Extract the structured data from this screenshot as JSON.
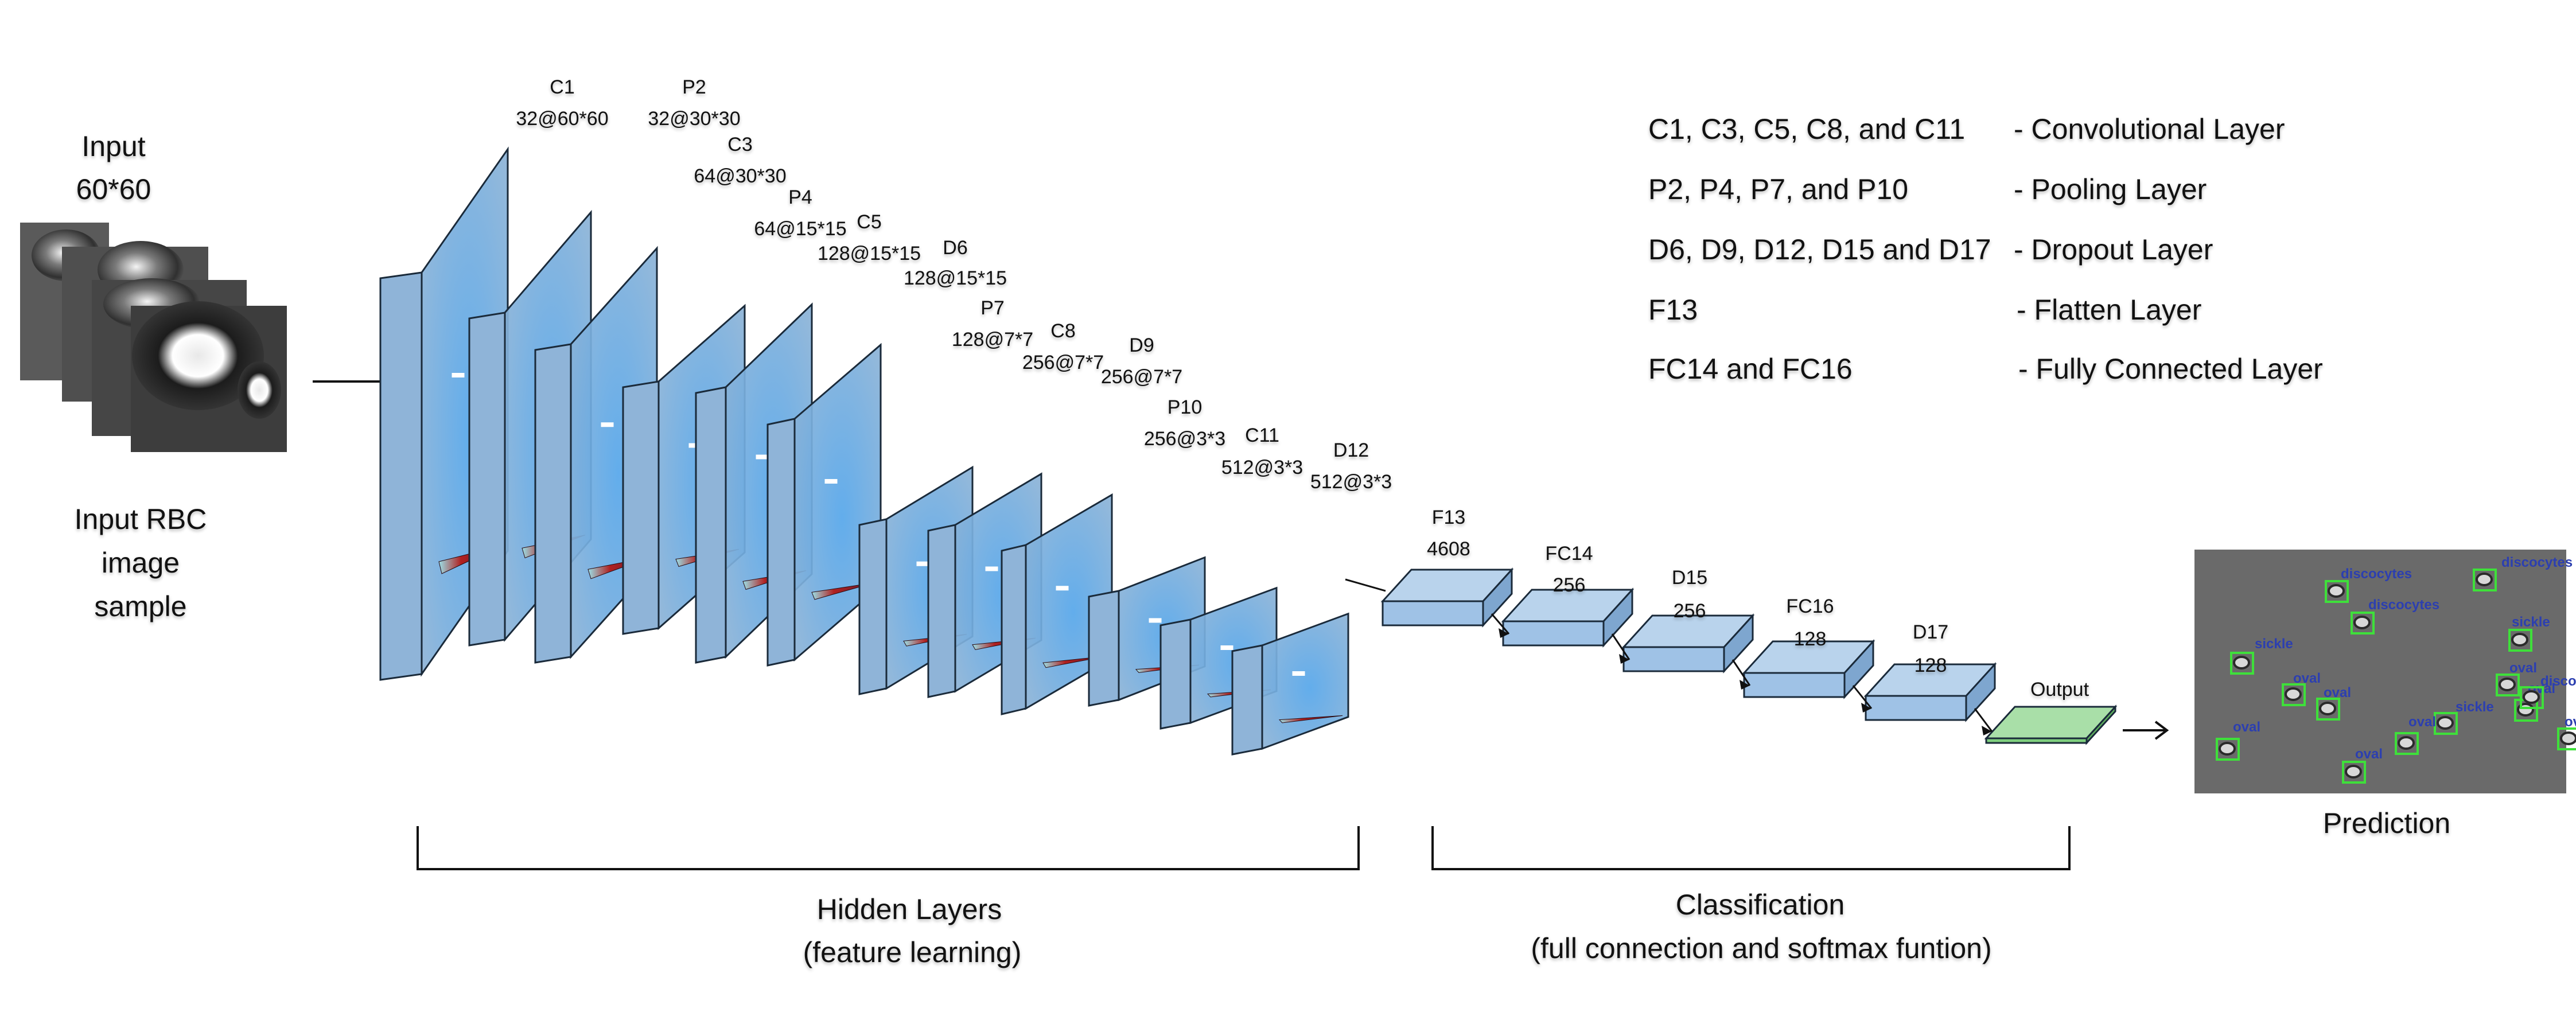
{
  "input": {
    "title_line1": "Input",
    "title_line2": "60*60",
    "caption_line1": "Input RBC",
    "caption_line2": "image",
    "caption_line3": "sample"
  },
  "layers": [
    {
      "id": "C1",
      "name": "C1",
      "dims": "32@60*60"
    },
    {
      "id": "P2",
      "name": "P2",
      "dims": "32@30*30"
    },
    {
      "id": "C3",
      "name": "C3",
      "dims": "64@30*30"
    },
    {
      "id": "P4",
      "name": "P4",
      "dims": "64@15*15"
    },
    {
      "id": "C5",
      "name": "C5",
      "dims": "128@15*15"
    },
    {
      "id": "D6",
      "name": "D6",
      "dims": "128@15*15"
    },
    {
      "id": "P7",
      "name": "P7",
      "dims": "128@7*7"
    },
    {
      "id": "C8",
      "name": "C8",
      "dims": "256@7*7"
    },
    {
      "id": "D9",
      "name": "D9",
      "dims": "256@7*7"
    },
    {
      "id": "P10",
      "name": "P10",
      "dims": "256@3*3"
    },
    {
      "id": "C11",
      "name": "C11",
      "dims": "512@3*3"
    },
    {
      "id": "D12",
      "name": "D12",
      "dims": "512@3*3"
    }
  ],
  "dense": [
    {
      "id": "F13",
      "name": "F13",
      "dims": "4608"
    },
    {
      "id": "FC14",
      "name": "FC14",
      "dims": "256"
    },
    {
      "id": "D15",
      "name": "D15",
      "dims": "256"
    },
    {
      "id": "FC16",
      "name": "FC16",
      "dims": "128"
    },
    {
      "id": "D17",
      "name": "D17",
      "dims": "128"
    },
    {
      "id": "Output",
      "name": "Output",
      "dims": ""
    }
  ],
  "legend": [
    {
      "layers": "C1, C3, C5, C8, and C11",
      "desc": "- Convolutional Layer"
    },
    {
      "layers": "P2, P4, P7, and P10",
      "desc": "- Pooling Layer"
    },
    {
      "layers": "D6, D9, D12, D15 and D17",
      "desc": "- Dropout Layer"
    },
    {
      "layers": "F13",
      "desc": "- Flatten Layer"
    },
    {
      "layers": "FC14 and FC16",
      "desc": "- Fully Connected Layer"
    }
  ],
  "sections": {
    "hidden_line1": "Hidden Layers",
    "hidden_line2": "(feature learning)",
    "class_line1": "Classification",
    "class_line2": "(full connection and softmax funtion)"
  },
  "prediction": {
    "caption": "Prediction",
    "detections": [
      {
        "label": "discocytes"
      },
      {
        "label": "discocytes"
      },
      {
        "label": "discocytes"
      },
      {
        "label": "sickle"
      },
      {
        "label": "sickle"
      },
      {
        "label": "sickle"
      },
      {
        "label": "oval"
      },
      {
        "label": "oval"
      },
      {
        "label": "oval"
      },
      {
        "label": "oval"
      },
      {
        "label": "oval"
      },
      {
        "label": "oval"
      },
      {
        "label": "oval"
      },
      {
        "label": "oval"
      },
      {
        "label": "discocy"
      }
    ]
  },
  "colors": {
    "layer_fill": "#8fb4d8",
    "layer_center": "#5aa6e6",
    "layer_edge": "#1a2a3a",
    "output_fill": "#a9dfa8",
    "detection_box": "#3ee03a",
    "detection_text": "#2c3fb0"
  }
}
